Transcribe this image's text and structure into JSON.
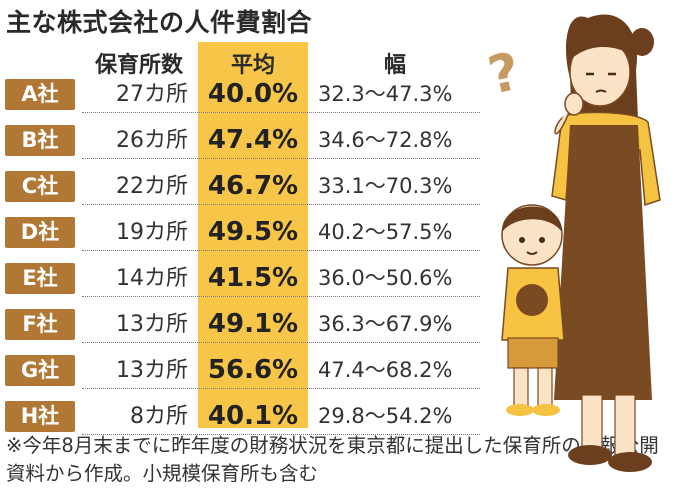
{
  "title": "主な株式会社の人件費割合",
  "headers": {
    "count": "保育所数",
    "average": "平均",
    "range": "幅"
  },
  "chart_data": {
    "type": "table",
    "title": "主な株式会社の人件費割合",
    "columns": [
      "保育所数",
      "平均",
      "幅"
    ],
    "rows": [
      {
        "company": "A社",
        "count": "27カ所",
        "average": "40.0%",
        "range": "32.3～47.3%"
      },
      {
        "company": "B社",
        "count": "26カ所",
        "average": "47.4%",
        "range": "34.6～72.8%"
      },
      {
        "company": "C社",
        "count": "22カ所",
        "average": "46.7%",
        "range": "33.1～70.3%"
      },
      {
        "company": "D社",
        "count": "19カ所",
        "average": "49.5%",
        "range": "40.2～57.5%"
      },
      {
        "company": "E社",
        "count": "14カ所",
        "average": "41.5%",
        "range": "36.0～50.6%"
      },
      {
        "company": "F社",
        "count": "13カ所",
        "average": "49.1%",
        "range": "36.3～67.9%"
      },
      {
        "company": "G社",
        "count": "13カ所",
        "average": "56.6%",
        "range": "47.4～68.2%"
      },
      {
        "company": "H社",
        "count": "8カ所",
        "average": "40.1%",
        "range": "29.8～54.2%"
      }
    ]
  },
  "note": "※今年8月末までに昨年度の財務状況を東京都に提出した保育所の情報公開資料から作成。小規模保育所も含む",
  "colors": {
    "badge": "#b07834",
    "average_column": "#f7c548",
    "apron": "#7a4a22",
    "shirt": "#f5c242",
    "hair": "#6b3f1d",
    "skin": "#fbe3c6"
  },
  "illustration": {
    "question_mark": "?"
  }
}
